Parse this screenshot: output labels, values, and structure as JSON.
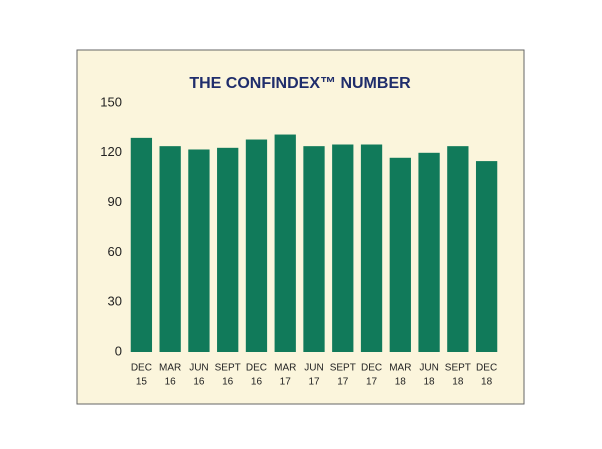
{
  "chart_data": {
    "type": "bar",
    "title": "THE CONFINDEX™ NUMBER",
    "categories": [
      [
        "DEC",
        "15"
      ],
      [
        "MAR",
        "16"
      ],
      [
        "JUN",
        "16"
      ],
      [
        "SEPT",
        "16"
      ],
      [
        "DEC",
        "16"
      ],
      [
        "MAR",
        "17"
      ],
      [
        "JUN",
        "17"
      ],
      [
        "SEPT",
        "17"
      ],
      [
        "DEC",
        "17"
      ],
      [
        "MAR",
        "18"
      ],
      [
        "JUN",
        "18"
      ],
      [
        "SEPT",
        "18"
      ],
      [
        "DEC",
        "18"
      ]
    ],
    "values": [
      129,
      124,
      122,
      123,
      128,
      131,
      124,
      125,
      125,
      117,
      120,
      124,
      115
    ],
    "color": "#117a5a",
    "ylim": [
      0,
      150
    ],
    "yticks": [
      0,
      30,
      60,
      90,
      120,
      150
    ],
    "grid": false
  }
}
